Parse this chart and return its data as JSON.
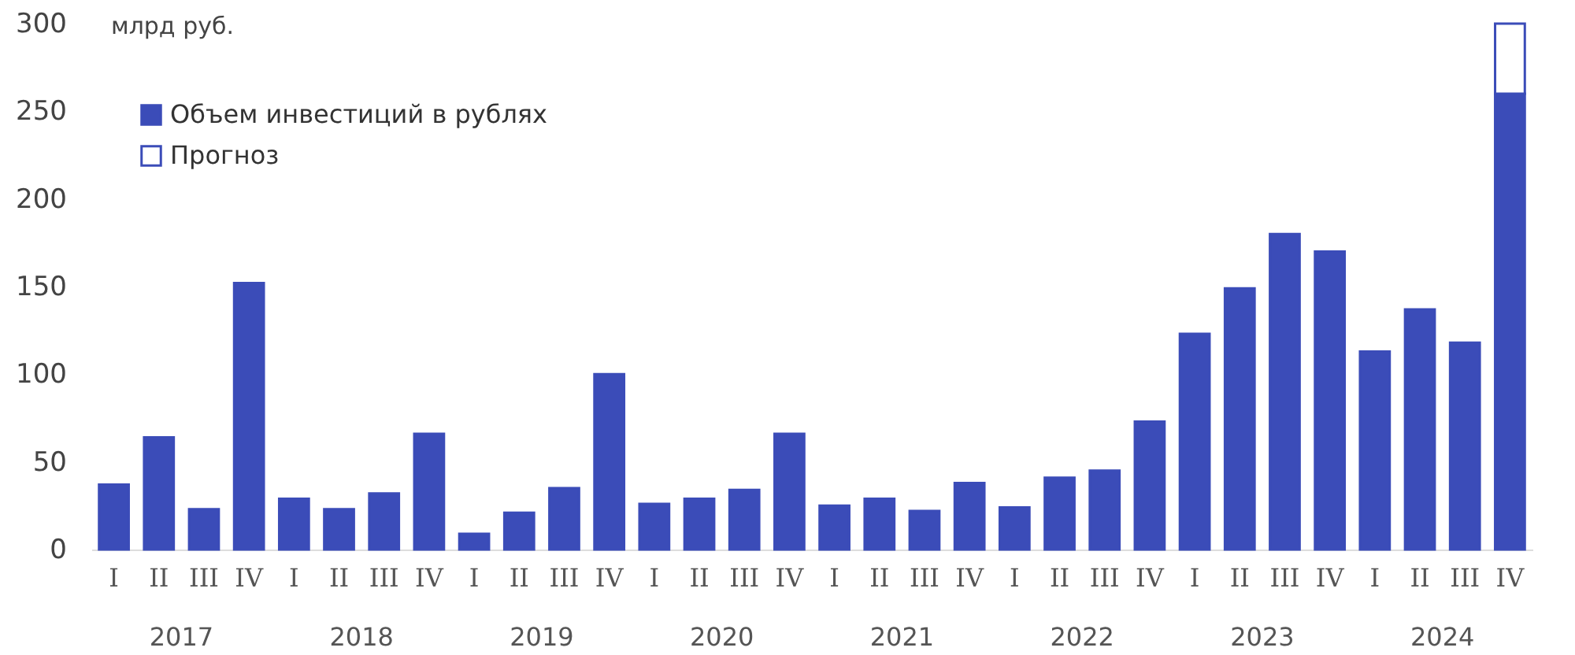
{
  "chart_data": {
    "type": "bar",
    "ylabel": "млрд руб.",
    "stacked": true,
    "legend": "top left",
    "grid": false,
    "categories": [
      "I",
      "II",
      "III",
      "IV",
      "I",
      "II",
      "III",
      "IV",
      "I",
      "II",
      "III",
      "IV",
      "I",
      "II",
      "III",
      "IV",
      "I",
      "II",
      "III",
      "IV",
      "I",
      "II",
      "III",
      "IV",
      "I",
      "II",
      "III",
      "IV",
      "I",
      "II",
      "III",
      "IV"
    ],
    "series": [
      {
        "name": "Объем инвестиций в рублях",
        "color": "#3b4cb8",
        "values": [
          37,
          64,
          23,
          152,
          29,
          23,
          32,
          66,
          9,
          21,
          35,
          100,
          26,
          29,
          34,
          66,
          25,
          29,
          22,
          38,
          24,
          41,
          45,
          73,
          123,
          149,
          180,
          170,
          113,
          137,
          118,
          260
        ]
      },
      {
        "name": "Прогноз",
        "color": "#ffffff",
        "values": [
          null,
          null,
          null,
          null,
          null,
          null,
          null,
          null,
          null,
          null,
          null,
          null,
          null,
          null,
          null,
          null,
          null,
          null,
          null,
          null,
          null,
          null,
          null,
          null,
          null,
          null,
          null,
          null,
          null,
          null,
          null,
          40
        ]
      }
    ],
    "annotations": [
      "2017",
      "2018",
      "2019",
      "2020",
      "2021",
      "2022",
      "2023",
      "2024"
    ],
    "ylim": [
      0,
      300
    ],
    "yticks": [
      0,
      50,
      100,
      150,
      200,
      250,
      300
    ]
  }
}
